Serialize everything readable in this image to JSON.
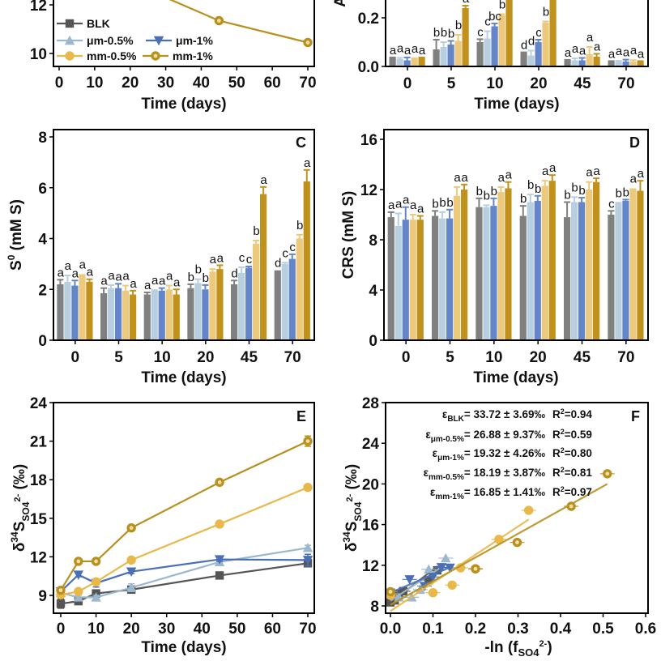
{
  "series_styles": [
    {
      "name": "BLK",
      "color": "#555555",
      "bar_color": "#808080",
      "marker": "square"
    },
    {
      "name": "μm-0.5%",
      "color": "#9bb8cf",
      "bar_color": "#b8cfe0",
      "marker": "triangle-up"
    },
    {
      "name": "μm-1%",
      "color": "#4a6fb5",
      "bar_color": "#6486c8",
      "marker": "triangle-down"
    },
    {
      "name": "mm-0.5%",
      "color": "#e8b84a",
      "bar_color": "#ecc97c",
      "marker": "circle"
    },
    {
      "name": "mm-1%",
      "color": "#b8901e",
      "bar_color": "#c0921c",
      "marker": "circle-dot"
    }
  ],
  "chart_data": [
    {
      "panel": "A",
      "type": "line",
      "partial": true,
      "xlabel": "Time (days)",
      "ylabel": "",
      "x_ticks": [
        "0",
        "10",
        "20",
        "30",
        "40",
        "50",
        "60",
        "70"
      ],
      "y_ticks": [
        "10",
        "12"
      ],
      "xlim": [
        0,
        70
      ],
      "ylim": [
        9.5,
        12.2
      ],
      "legend": [
        "BLK",
        "μm-0.5%",
        "μm-1%",
        "mm-0.5%",
        "mm-1%"
      ],
      "legend_position": "bottom-left",
      "series": [
        {
          "name": "mm-1%",
          "x": [
            30,
            45,
            70
          ],
          "y": [
            12.3,
            11.35,
            10.45
          ]
        }
      ]
    },
    {
      "panel": "B",
      "type": "bar",
      "partial": true,
      "xlabel": "Time (days)",
      "ylabel": "A",
      "categories": [
        "0",
        "5",
        "10",
        "20",
        "45",
        "70"
      ],
      "y_ticks": [
        "0.0",
        "0.2"
      ],
      "ylim": [
        0,
        0.27
      ],
      "series": [
        {
          "name": "BLK",
          "values": [
            0.035,
            0.07,
            0.1,
            0.055,
            0.025,
            0.02
          ],
          "errors": [
            0.002,
            0.04,
            0.012,
            0.003,
            0.002,
            0.002
          ],
          "letters": [
            "a",
            "b",
            "c",
            "d",
            "a",
            "a"
          ]
        },
        {
          "name": "μm-0.5%",
          "values": [
            0.03,
            0.08,
            0.115,
            0.045,
            0.025,
            0.02
          ],
          "errors": [
            0.005,
            0.02,
            0.03,
            0.02,
            0.008,
            0.003
          ],
          "letters": [
            "a",
            "b",
            "c",
            "d",
            "a",
            "a"
          ]
        },
        {
          "name": "μm-1%",
          "values": [
            0.025,
            0.09,
            0.165,
            0.1,
            0.025,
            0.02
          ],
          "errors": [
            0.012,
            0.015,
            0.012,
            0.01,
            0.01,
            0.008
          ],
          "letters": [
            "a",
            "b",
            "bc",
            "c",
            "a",
            "a"
          ]
        },
        {
          "name": "mm-0.5%",
          "values": [
            0.03,
            0.105,
            0.21,
            0.18,
            0.05,
            0.02
          ],
          "errors": [
            0.003,
            0.025,
            0.005,
            0.005,
            0.03,
            0.006
          ],
          "letters": [
            "a",
            "b",
            "b",
            "b",
            "a",
            "a"
          ]
        },
        {
          "name": "mm-1%",
          "values": [
            0.035,
            0.24,
            0.3,
            0.3,
            0.04,
            0.02
          ],
          "errors": [
            0.002,
            0.01,
            0.0,
            0.0,
            0.012,
            0.002
          ],
          "letters": [
            "a",
            "a",
            "",
            "",
            "a",
            "a"
          ]
        }
      ]
    },
    {
      "panel": "C",
      "type": "bar",
      "xlabel": "Time (days)",
      "ylabel": "S⁰ (mM S)",
      "categories": [
        "0",
        "5",
        "10",
        "20",
        "45",
        "70"
      ],
      "y_ticks": [
        "0",
        "2",
        "4",
        "6",
        "8"
      ],
      "ylim": [
        0,
        8.3
      ],
      "series": [
        {
          "name": "BLK",
          "values": [
            2.2,
            1.85,
            1.8,
            2.05,
            2.2,
            2.75
          ],
          "errors": [
            0.18,
            0.2,
            0.08,
            0.15,
            0.15,
            0.0
          ],
          "letters": [
            "a",
            "a",
            "a",
            "b",
            "d",
            "d"
          ]
        },
        {
          "name": "μm-0.5%",
          "values": [
            2.3,
            2.05,
            1.95,
            2.25,
            2.65,
            3.0
          ],
          "errors": [
            0.25,
            0.12,
            0.02,
            0.15,
            0.22,
            0.05
          ],
          "letters": [
            "a",
            "a",
            "a",
            "b",
            "c",
            "c"
          ]
        },
        {
          "name": "μm-1%",
          "values": [
            2.15,
            2.05,
            1.95,
            2.0,
            2.85,
            3.2
          ],
          "errors": [
            0.2,
            0.17,
            0.1,
            0.17,
            0.05,
            0.18
          ],
          "letters": [
            "a",
            "a",
            "a",
            "b",
            "c",
            "c"
          ]
        },
        {
          "name": "mm-0.5%",
          "values": [
            2.6,
            1.95,
            2.0,
            2.7,
            3.8,
            4.0
          ],
          "errors": [
            0.0,
            0.2,
            0.15,
            0.1,
            0.12,
            0.15
          ],
          "letters": [
            "a",
            "a",
            "a",
            "a",
            "b",
            "b"
          ]
        },
        {
          "name": "mm-1%",
          "values": [
            2.3,
            1.8,
            1.8,
            2.8,
            5.75,
            6.25
          ],
          "errors": [
            0.1,
            0.15,
            0.2,
            0.15,
            0.28,
            0.45
          ],
          "letters": [
            "a",
            "a",
            "a",
            "a",
            "a",
            "a"
          ]
        }
      ]
    },
    {
      "panel": "D",
      "type": "bar",
      "xlabel": "Time (days)",
      "ylabel": "CRS (mM S)",
      "categories": [
        "0",
        "5",
        "10",
        "20",
        "45",
        "70"
      ],
      "y_ticks": [
        "0",
        "4",
        "8",
        "12",
        "16"
      ],
      "ylim": [
        0,
        16.5
      ],
      "series": [
        {
          "name": "BLK",
          "values": [
            9.8,
            9.9,
            10.6,
            9.9,
            9.8,
            10.0
          ],
          "errors": [
            0.4,
            0.4,
            0.7,
            0.8,
            1.2,
            0.3
          ],
          "letters": [
            "a",
            "b",
            "b",
            "b",
            "b",
            "c"
          ]
        },
        {
          "name": "μm-0.5%",
          "values": [
            9.1,
            9.7,
            10.6,
            11.0,
            11.0,
            10.9
          ],
          "errors": [
            1.0,
            0.5,
            0.15,
            0.6,
            0.4,
            0.05
          ],
          "letters": [
            "a",
            "b",
            "b",
            "b",
            "b",
            "b"
          ]
        },
        {
          "name": "μm-1%",
          "values": [
            9.6,
            9.7,
            10.7,
            11.1,
            11.0,
            11.1
          ],
          "errors": [
            1.0,
            0.7,
            0.6,
            0.4,
            0.35,
            0.1
          ],
          "letters": [
            "a",
            "b",
            "b",
            "b",
            "b",
            "b"
          ]
        },
        {
          "name": "mm-0.5%",
          "values": [
            9.6,
            11.5,
            11.8,
            12.3,
            12.0,
            12.1
          ],
          "errors": [
            0.4,
            0.7,
            0.4,
            0.4,
            0.6,
            0.0
          ],
          "letters": [
            "a",
            "a",
            "a",
            "a",
            "a",
            "a"
          ]
        },
        {
          "name": "mm-1%",
          "values": [
            9.6,
            12.0,
            12.1,
            12.7,
            12.6,
            11.9
          ],
          "errors": [
            0.3,
            0.4,
            0.5,
            0.45,
            0.3,
            0.8
          ],
          "letters": [
            "a",
            "a",
            "a",
            "a",
            "a",
            "a"
          ]
        }
      ]
    },
    {
      "panel": "E",
      "type": "line",
      "xlabel": "Time (days)",
      "ylabel": "δ³⁴S(SO₄²⁻) (‰)",
      "x_ticks": [
        "0",
        "10",
        "20",
        "30",
        "40",
        "50",
        "60",
        "70"
      ],
      "y_ticks": [
        "9",
        "12",
        "15",
        "18",
        "21",
        "24"
      ],
      "xlim": [
        -1.5,
        72
      ],
      "ylim": [
        7.6,
        24
      ],
      "series": [
        {
          "name": "BLK",
          "x": [
            0,
            5,
            10,
            20,
            45,
            70
          ],
          "y": [
            8.35,
            8.55,
            9.15,
            9.45,
            10.55,
            11.5
          ],
          "errors": [
            0.35,
            0.15,
            0.2,
            0.15,
            0.1,
            0.15
          ]
        },
        {
          "name": "μm-0.5%",
          "x": [
            0,
            5,
            10,
            20,
            45,
            70
          ],
          "y": [
            9.2,
            8.85,
            8.85,
            9.6,
            11.6,
            12.7
          ],
          "errors": [
            0.15,
            0.15,
            0.15,
            0.3,
            0.1,
            0.2
          ]
        },
        {
          "name": "μm-1%",
          "x": [
            0,
            5,
            10,
            20,
            45,
            70
          ],
          "y": [
            9.3,
            10.6,
            9.95,
            10.85,
            11.8,
            11.75
          ],
          "errors": [
            0.1,
            0.15,
            0.3,
            0.15,
            0.15,
            0.45
          ]
        },
        {
          "name": "mm-0.5%",
          "x": [
            0,
            5,
            10,
            20,
            45,
            70
          ],
          "y": [
            9.05,
            9.3,
            10.05,
            11.75,
            14.55,
            17.4
          ],
          "errors": [
            0.25,
            0.15,
            0.15,
            0.15,
            0.2,
            0.2
          ]
        },
        {
          "name": "mm-1%",
          "x": [
            0,
            5,
            10,
            20,
            45,
            70
          ],
          "y": [
            9.4,
            11.65,
            11.65,
            14.25,
            17.8,
            21.0
          ],
          "errors": [
            0.1,
            0.1,
            0.1,
            0.15,
            0.15,
            0.4
          ]
        }
      ]
    },
    {
      "panel": "F",
      "type": "scatter",
      "xlabel": "-ln (f(SO₄²⁻))",
      "ylabel": "δ³⁴S(SO₄²⁻) (‰)",
      "x_ticks": [
        "0.0",
        "0.1",
        "0.2",
        "0.3",
        "0.4",
        "0.5",
        "0.6"
      ],
      "y_ticks": [
        "8",
        "12",
        "16",
        "20",
        "24",
        "28"
      ],
      "xlim": [
        -0.02,
        0.6
      ],
      "ylim": [
        7.6,
        28
      ],
      "annotations": [
        {
          "label": "ε",
          "sub": "BLK",
          "text": "= 33.72 ± 3.69‰",
          "r2": "R²=0.94"
        },
        {
          "label": "ε",
          "sub": "μm-0.5%",
          "text": "= 26.88 ± 9.37‰",
          "r2": "R²=0.59"
        },
        {
          "label": "ε",
          "sub": "μm-1%",
          "text": "= 19.32 ± 4.26‰",
          "r2": "R²=0.80"
        },
        {
          "label": "ε",
          "sub": "mm-0.5%",
          "text": "= 18.19 ± 3.87‰",
          "r2": "R²=0.81"
        },
        {
          "label": "ε",
          "sub": "mm-1%",
          "text": "= 16.85 ± 1.41‰",
          "r2": "R²=0.97"
        }
      ],
      "series": [
        {
          "name": "BLK",
          "x": [
            0.0,
            0.01,
            0.02,
            0.03,
            0.09,
            0.11
          ],
          "y": [
            8.35,
            8.55,
            9.15,
            9.45,
            10.55,
            11.5
          ],
          "fit": [
            [
              0.0,
              8.3
            ],
            [
              0.11,
              11.9
            ]
          ]
        },
        {
          "name": "μm-0.5%",
          "x": [
            0.0,
            0.02,
            0.05,
            0.07,
            0.09,
            0.13
          ],
          "y": [
            9.2,
            8.85,
            8.85,
            9.6,
            11.6,
            12.7
          ],
          "fit": [
            [
              0.0,
              8.5
            ],
            [
              0.13,
              12.1
            ]
          ]
        },
        {
          "name": "μm-1%",
          "x": [
            0.0,
            0.045,
            0.08,
            0.1,
            0.12,
            0.14
          ],
          "y": [
            9.3,
            10.6,
            9.95,
            10.85,
            11.8,
            11.75
          ],
          "fit": [
            [
              0.0,
              9.3
            ],
            [
              0.14,
              11.8
            ]
          ]
        },
        {
          "name": "mm-0.5%",
          "x": [
            0.0,
            0.1,
            0.145,
            0.165,
            0.255,
            0.325
          ],
          "y": [
            9.05,
            9.3,
            10.05,
            11.75,
            14.55,
            17.4
          ],
          "fit": [
            [
              0.0,
              7.5
            ],
            [
              0.325,
              16.5
            ]
          ]
        },
        {
          "name": "mm-1%",
          "x": [
            0.0,
            0.2,
            0.2,
            0.298,
            0.425,
            0.51
          ],
          "y": [
            9.4,
            11.65,
            11.65,
            14.25,
            17.8,
            21.0
          ],
          "fit": [
            [
              0.0,
              8.1
            ],
            [
              0.51,
              20.0
            ]
          ]
        }
      ]
    }
  ]
}
